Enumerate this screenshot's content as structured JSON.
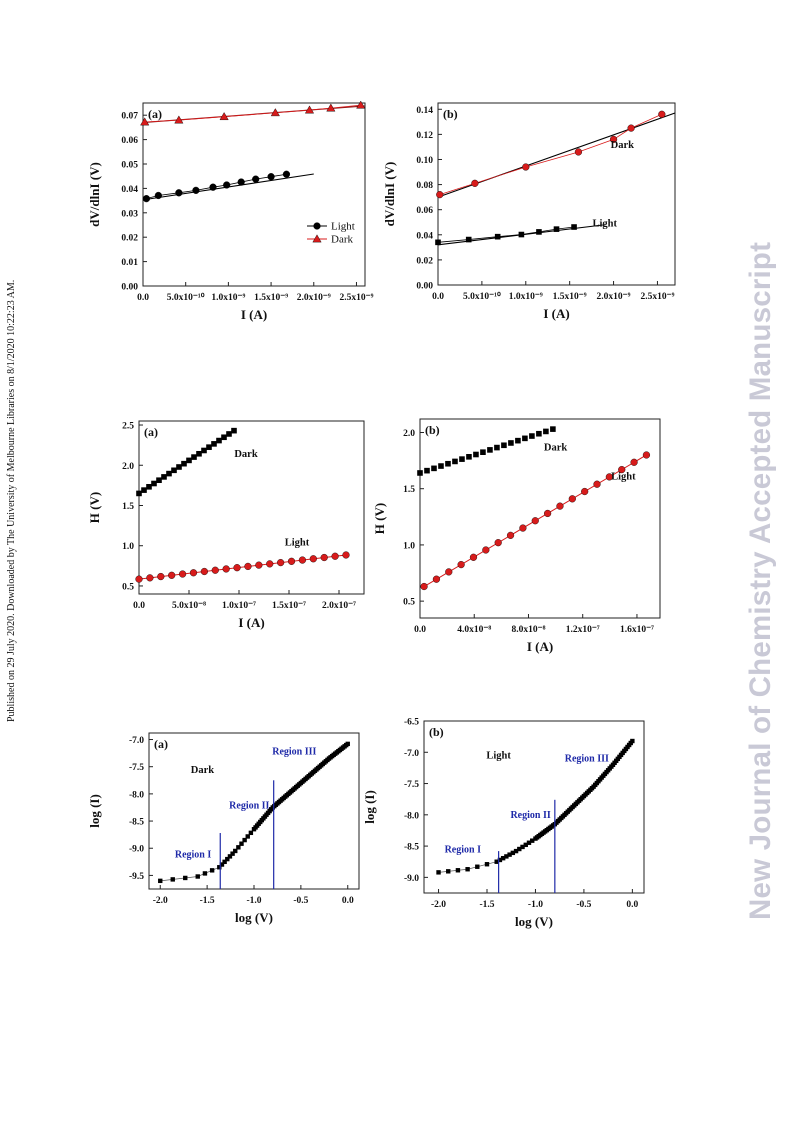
{
  "side_note": "Published on 29 July 2020. Downloaded by The University of Melbourne Libraries on 8/1/2020 10:22:23 AM.",
  "watermark": "New Journal of Chemistry Accepted Manuscript",
  "chart_data": [
    {
      "id": "c1",
      "panel_label": "(a)",
      "type": "scatter",
      "xlabel": "I (A)",
      "ylabel": "dV/dlnI (V)",
      "xlim": [
        0,
        2.6e-09
      ],
      "ylim": [
        0,
        0.075
      ],
      "xticks": [
        {
          "v": 0,
          "label": "0.0"
        },
        {
          "v": 5e-10,
          "label": "5.0x10⁻¹⁰"
        },
        {
          "v": 1e-09,
          "label": "1.0x10⁻⁹"
        },
        {
          "v": 1.5e-09,
          "label": "1.5x10⁻⁹"
        },
        {
          "v": 2e-09,
          "label": "2.0x10⁻⁹"
        },
        {
          "v": 2.5e-09,
          "label": "2.5x10⁻⁹"
        }
      ],
      "yticks": [
        {
          "v": 0,
          "label": "0.00"
        },
        {
          "v": 0.01,
          "label": "0.01"
        },
        {
          "v": 0.02,
          "label": "0.02"
        },
        {
          "v": 0.03,
          "label": "0.03"
        },
        {
          "v": 0.04,
          "label": "0.04"
        },
        {
          "v": 0.05,
          "label": "0.05"
        },
        {
          "v": 0.06,
          "label": "0.06"
        },
        {
          "v": 0.07,
          "label": "0.07"
        }
      ],
      "legend": {
        "position": "bottom-right",
        "entries": [
          {
            "name": "Light",
            "marker": "circle",
            "color": "#000000"
          },
          {
            "name": "Dark",
            "marker": "triangle",
            "color": "#d81b1b"
          }
        ]
      },
      "annotations": [],
      "series": [
        {
          "name": "Light",
          "marker": "circle",
          "color": "#000000",
          "fit_color": "#000000",
          "x": [
            4e-11,
            1.8e-10,
            4.2e-10,
            6.2e-10,
            8.2e-10,
            9.8e-10,
            1.15e-09,
            1.32e-09,
            1.5e-09,
            1.68e-09
          ],
          "y": [
            0.0358,
            0.0371,
            0.0382,
            0.0392,
            0.0405,
            0.0414,
            0.0426,
            0.0438,
            0.0448,
            0.0458
          ],
          "fit": [
            [
              0,
              0.0353
            ],
            [
              2e-09,
              0.0459
            ]
          ]
        },
        {
          "name": "Dark",
          "marker": "triangle",
          "color": "#d81b1b",
          "fit_color": "#8b1a1a",
          "x": [
            2e-11,
            4.2e-10,
            9.5e-10,
            1.55e-09,
            1.95e-09,
            2.2e-09,
            2.55e-09
          ],
          "y": [
            0.0672,
            0.068,
            0.0694,
            0.071,
            0.0721,
            0.0729,
            0.0741
          ],
          "fit": [
            [
              0,
              0.067
            ],
            [
              2.6e-09,
              0.0738
            ]
          ]
        }
      ]
    },
    {
      "id": "c2",
      "panel_label": "(b)",
      "type": "scatter",
      "xlabel": "I (A)",
      "ylabel": "dV/dlnI (V)",
      "xlim": [
        0,
        2.7e-09
      ],
      "ylim": [
        0,
        0.145
      ],
      "xticks": [
        {
          "v": 0,
          "label": "0.0"
        },
        {
          "v": 5e-10,
          "label": "5.0x10⁻¹⁰"
        },
        {
          "v": 1e-09,
          "label": "1.0x10⁻⁹"
        },
        {
          "v": 1.5e-09,
          "label": "1.5x10⁻⁹"
        },
        {
          "v": 2e-09,
          "label": "2.0x10⁻⁹"
        },
        {
          "v": 2.5e-09,
          "label": "2.5x10⁻⁹"
        }
      ],
      "yticks": [
        {
          "v": 0,
          "label": "0.00"
        },
        {
          "v": 0.02,
          "label": "0.02"
        },
        {
          "v": 0.04,
          "label": "0.04"
        },
        {
          "v": 0.06,
          "label": "0.06"
        },
        {
          "v": 0.08,
          "label": "0.08"
        },
        {
          "v": 0.1,
          "label": "0.10"
        },
        {
          "v": 0.12,
          "label": "0.12"
        },
        {
          "v": 0.14,
          "label": "0.14"
        }
      ],
      "legend": null,
      "annotations": [
        {
          "text": "Dark",
          "x": 2.1e-09,
          "y": 0.109
        },
        {
          "text": "Light",
          "x": 1.9e-09,
          "y": 0.0465
        }
      ],
      "series": [
        {
          "name": "Dark",
          "marker": "circle",
          "color": "#d81b1b",
          "fit_color": "#000000",
          "x": [
            2e-11,
            4.2e-10,
            1e-09,
            1.6e-09,
            2e-09,
            2.2e-09,
            2.55e-09
          ],
          "y": [
            0.072,
            0.081,
            0.094,
            0.106,
            0.116,
            0.125,
            0.136
          ],
          "fit": [
            [
              0,
              0.07
            ],
            [
              2.7e-09,
              0.137
            ]
          ]
        },
        {
          "name": "Light",
          "marker": "square",
          "color": "#000000",
          "fit_color": "#000000",
          "x": [
            0.0,
            3.5e-10,
            6.8e-10,
            9.5e-10,
            1.15e-09,
            1.35e-09,
            1.55e-09
          ],
          "y": [
            0.034,
            0.0362,
            0.0385,
            0.0402,
            0.0423,
            0.0445,
            0.0462
          ],
          "fit": [
            [
              0,
              0.032
            ],
            [
              1.9e-09,
              0.048
            ]
          ]
        }
      ]
    },
    {
      "id": "c3",
      "panel_label": "(a)",
      "type": "scatter",
      "xlabel": "I (A)",
      "ylabel": "H (V)",
      "xlim": [
        0,
        2.25e-07
      ],
      "ylim": [
        0.4,
        2.55
      ],
      "xticks": [
        {
          "v": 0,
          "label": "0.0"
        },
        {
          "v": 5e-08,
          "label": "5.0x10⁻⁸"
        },
        {
          "v": 1e-07,
          "label": "1.0x10⁻⁷"
        },
        {
          "v": 1.5e-07,
          "label": "1.5x10⁻⁷"
        },
        {
          "v": 2e-07,
          "label": "2.0x10⁻⁷"
        }
      ],
      "yticks": [
        {
          "v": 0.5,
          "label": "0.5"
        },
        {
          "v": 1.0,
          "label": "1.0"
        },
        {
          "v": 1.5,
          "label": "1.5"
        },
        {
          "v": 2.0,
          "label": "2.0"
        },
        {
          "v": 2.5,
          "label": "2.5"
        }
      ],
      "legend": null,
      "annotations": [
        {
          "text": "Dark",
          "x": 1.07e-07,
          "y": 2.1
        },
        {
          "text": "Light",
          "x": 1.58e-07,
          "y": 1.0
        }
      ],
      "series": [
        {
          "name": "Dark",
          "marker": "square",
          "color": "#000000",
          "fit_color": "#000000",
          "x_range": [
            0,
            9.5e-08
          ],
          "y_range": [
            1.65,
            2.43
          ],
          "n": 20,
          "fit": null
        },
        {
          "name": "Light",
          "marker": "circle",
          "color": "#d81b1b",
          "fit_color": "#d81b1b",
          "x_range": [
            0,
            2.07e-07
          ],
          "y_range": [
            0.585,
            0.885
          ],
          "n": 20,
          "fit": "line"
        }
      ]
    },
    {
      "id": "c4",
      "panel_label": "(b)",
      "type": "scatter",
      "xlabel": "I (A)",
      "ylabel": "H (V)",
      "xlim": [
        0,
        1.77e-07
      ],
      "ylim": [
        0.35,
        2.12
      ],
      "xticks": [
        {
          "v": 0,
          "label": "0.0"
        },
        {
          "v": 4e-08,
          "label": "4.0x10⁻⁸"
        },
        {
          "v": 8e-08,
          "label": "8.0x10⁻⁸"
        },
        {
          "v": 1.2e-07,
          "label": "1.2x10⁻⁷"
        },
        {
          "v": 1.6e-07,
          "label": "1.6x10⁻⁷"
        }
      ],
      "yticks": [
        {
          "v": 0.5,
          "label": "0.5"
        },
        {
          "v": 1.0,
          "label": "1.0"
        },
        {
          "v": 1.5,
          "label": "1.5"
        },
        {
          "v": 2.0,
          "label": "2.0"
        }
      ],
      "legend": null,
      "annotations": [
        {
          "text": "Dark",
          "x": 1e-07,
          "y": 1.84
        },
        {
          "text": "Light",
          "x": 1.5e-07,
          "y": 1.58
        }
      ],
      "series": [
        {
          "name": "Dark",
          "marker": "square",
          "color": "#000000",
          "fit_color": "#000000",
          "x_range": [
            0,
            9.8e-08
          ],
          "y_range": [
            1.64,
            2.03
          ],
          "n": 20,
          "fit": null
        },
        {
          "name": "Light",
          "marker": "circle",
          "color": "#d81b1b",
          "fit_color": "#d81b1b",
          "x_range": [
            3e-09,
            1.67e-07
          ],
          "y_range": [
            0.63,
            1.8
          ],
          "n": 19,
          "fit": "line"
        }
      ]
    },
    {
      "id": "c5",
      "panel_label": "(a)",
      "type": "scatter",
      "xlabel": "log (V)",
      "ylabel": "log (I)",
      "xlim": [
        -2.12,
        0.12
      ],
      "ylim": [
        -9.75,
        -6.88
      ],
      "xticks": [
        {
          "v": -2.0,
          "label": "-2.0"
        },
        {
          "v": -1.5,
          "label": "-1.5"
        },
        {
          "v": -1.0,
          "label": "-1.0"
        },
        {
          "v": -0.5,
          "label": "-0.5"
        },
        {
          "v": 0.0,
          "label": "0.0"
        }
      ],
      "yticks": [
        {
          "v": -9.5,
          "label": "-9.5"
        },
        {
          "v": -9.0,
          "label": "-9.0"
        },
        {
          "v": -8.5,
          "label": "-8.5"
        },
        {
          "v": -8.0,
          "label": "-8.0"
        },
        {
          "v": -7.5,
          "label": "-7.5"
        },
        {
          "v": -7.0,
          "label": "-7.0"
        }
      ],
      "legend": null,
      "annotations": [
        {
          "text": "Dark",
          "x": -1.55,
          "y": -7.62
        }
      ],
      "region_lines": [
        {
          "x": -1.36,
          "y1": -9.75,
          "y2": -8.72
        },
        {
          "x": -0.79,
          "y1": -9.75,
          "y2": -7.75
        }
      ],
      "region_labels": [
        {
          "text": "Region I",
          "x": -1.65,
          "y": -9.17
        },
        {
          "text": "Region II",
          "x": -1.05,
          "y": -8.27
        },
        {
          "text": "Region III",
          "x": -0.57,
          "y": -7.28
        }
      ],
      "curve": {
        "marker": "square",
        "color": "#000000",
        "points": [
          [
            -2.0,
            -9.6
          ],
          [
            -1.6,
            -9.52
          ],
          [
            -1.37,
            -9.35
          ],
          [
            -1.2,
            -9.05
          ],
          [
            -1.0,
            -8.65
          ],
          [
            -0.8,
            -8.25
          ],
          [
            -0.6,
            -7.95
          ],
          [
            -0.4,
            -7.65
          ],
          [
            -0.2,
            -7.35
          ],
          [
            0.0,
            -7.08
          ]
        ]
      }
    },
    {
      "id": "c6",
      "panel_label": "(b)",
      "type": "scatter",
      "xlabel": "log (V)",
      "ylabel": "log (I)",
      "xlim": [
        -2.15,
        0.12
      ],
      "ylim": [
        -9.25,
        -6.5
      ],
      "xticks": [
        {
          "v": -2.0,
          "label": "-2.0"
        },
        {
          "v": -1.5,
          "label": "-1.5"
        },
        {
          "v": -1.0,
          "label": "-1.0"
        },
        {
          "v": -0.5,
          "label": "-0.5"
        },
        {
          "v": 0.0,
          "label": "0.0"
        }
      ],
      "yticks": [
        {
          "v": -9.0,
          "label": "-9.0"
        },
        {
          "v": -8.5,
          "label": "-8.5"
        },
        {
          "v": -8.0,
          "label": "-8.0"
        },
        {
          "v": -7.5,
          "label": "-7.5"
        },
        {
          "v": -7.0,
          "label": "-7.0"
        },
        {
          "v": -6.5,
          "label": "-6.5"
        }
      ],
      "legend": null,
      "annotations": [
        {
          "text": "Light",
          "x": -1.38,
          "y": -7.1
        }
      ],
      "region_lines": [
        {
          "x": -1.38,
          "y1": -9.25,
          "y2": -8.58
        },
        {
          "x": -0.8,
          "y1": -9.25,
          "y2": -7.76
        }
      ],
      "region_labels": [
        {
          "text": "Region I",
          "x": -1.75,
          "y": -8.6
        },
        {
          "text": "Region II",
          "x": -1.05,
          "y": -8.05
        },
        {
          "text": "Region III",
          "x": -0.47,
          "y": -7.15
        }
      ],
      "curve": {
        "marker": "square",
        "color": "#000000",
        "points": [
          [
            -2.0,
            -8.92
          ],
          [
            -1.7,
            -8.87
          ],
          [
            -1.4,
            -8.75
          ],
          [
            -1.2,
            -8.58
          ],
          [
            -1.0,
            -8.38
          ],
          [
            -0.8,
            -8.15
          ],
          [
            -0.6,
            -7.85
          ],
          [
            -0.4,
            -7.55
          ],
          [
            -0.2,
            -7.2
          ],
          [
            0.0,
            -6.82
          ]
        ]
      }
    }
  ]
}
